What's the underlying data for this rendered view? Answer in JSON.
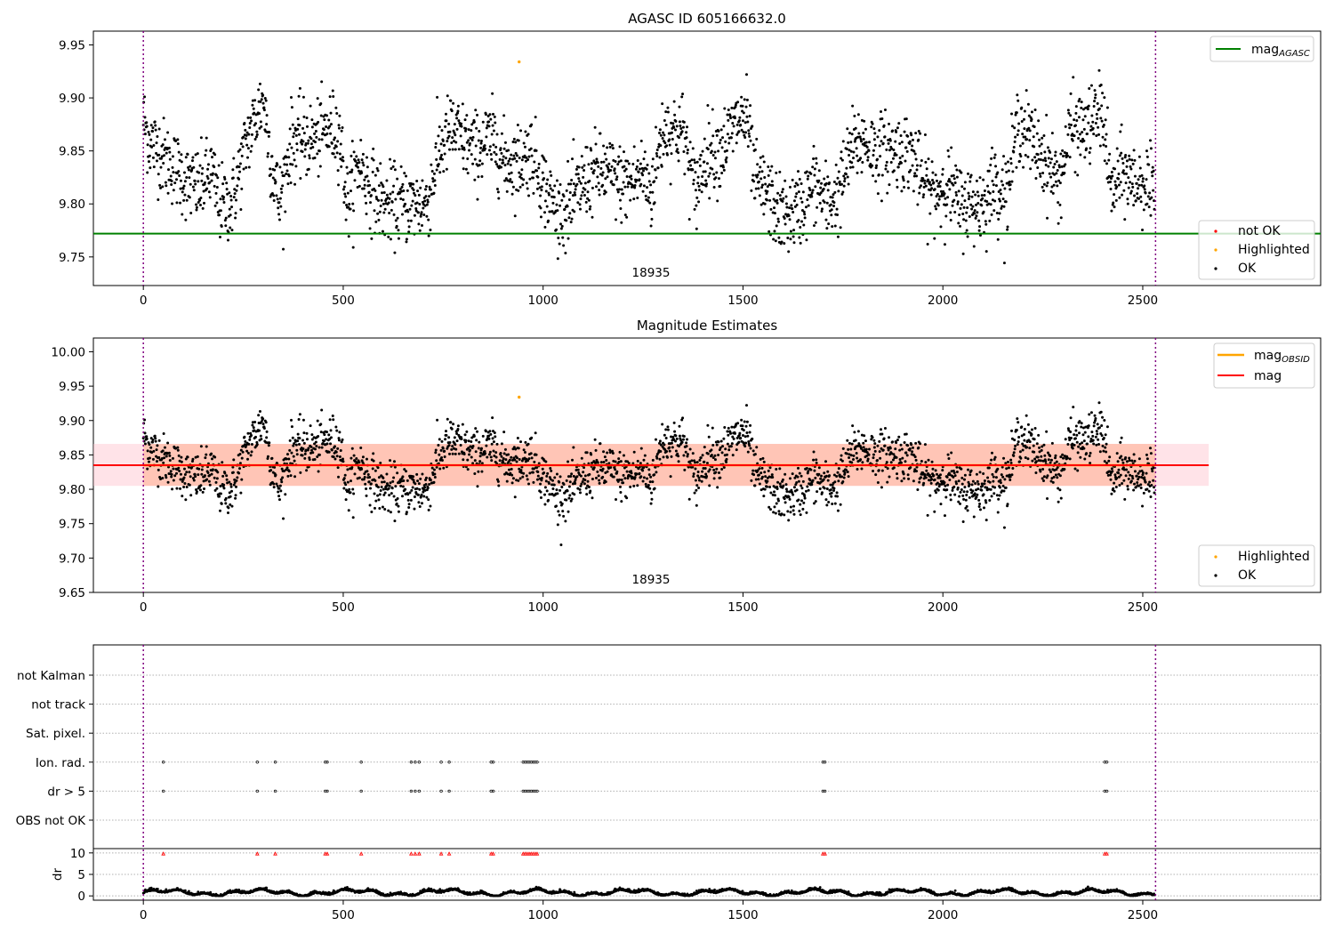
{
  "chart_data": [
    {
      "type": "scatter",
      "title": "AGASC ID 605166632.0",
      "xlabel": "",
      "ylabel": "",
      "xlim": [
        -125,
        2945
      ],
      "ylim": [
        9.723,
        9.963
      ],
      "xticks": [
        0,
        500,
        1000,
        1500,
        2000,
        2500
      ],
      "yticks": [
        9.75,
        9.8,
        9.85,
        9.9,
        9.95
      ],
      "ytick_labels": [
        "9.75",
        "9.80",
        "9.85",
        "9.90",
        "9.95"
      ],
      "obsid_label": "18935",
      "obsid_label_x": 1265,
      "obs_boundaries": [
        0,
        2532
      ],
      "mag_agasc": 9.772,
      "lines": [
        {
          "name": "mag_AGASC",
          "label": "mag",
          "subscript": "AGASC",
          "color": "#008000",
          "value": 9.772,
          "x_range": [
            -125,
            2945
          ]
        }
      ],
      "legend_upper": {
        "placement": "top-right",
        "entries": [
          {
            "label": "mag",
            "subscript": "AGASC",
            "color": "#008000"
          }
        ]
      },
      "legend_lower": {
        "placement": "bottom-right",
        "entries": [
          {
            "label": "not OK",
            "color": "#ff0000"
          },
          {
            "label": "Highlighted",
            "color": "#ffa500"
          },
          {
            "label": "OK",
            "color": "#000000"
          }
        ]
      },
      "highlighted_points": [
        {
          "x": 940,
          "y": 9.934
        }
      ],
      "series_summary": {
        "name": "OK",
        "n_points": 2530,
        "x_range": [
          0,
          2530
        ],
        "shape": [
          [
            0,
            9.88
          ],
          [
            15,
            9.86
          ],
          [
            40,
            9.85
          ],
          [
            60,
            9.84
          ],
          [
            90,
            9.83
          ],
          [
            110,
            9.82
          ],
          [
            140,
            9.815
          ],
          [
            170,
            9.83
          ],
          [
            190,
            9.8
          ],
          [
            220,
            9.8
          ],
          [
            240,
            9.83
          ],
          [
            260,
            9.86
          ],
          [
            280,
            9.88
          ],
          [
            300,
            9.9
          ],
          [
            320,
            9.84
          ],
          [
            340,
            9.8
          ],
          [
            370,
            9.86
          ],
          [
            400,
            9.86
          ],
          [
            430,
            9.86
          ],
          [
            460,
            9.87
          ],
          [
            490,
            9.87
          ],
          [
            510,
            9.8
          ],
          [
            540,
            9.84
          ],
          [
            560,
            9.82
          ],
          [
            600,
            9.8
          ],
          [
            640,
            9.8
          ],
          [
            680,
            9.8
          ],
          [
            710,
            9.8
          ],
          [
            740,
            9.85
          ],
          [
            770,
            9.87
          ],
          [
            800,
            9.86
          ],
          [
            830,
            9.85
          ],
          [
            860,
            9.86
          ],
          [
            880,
            9.86
          ],
          [
            900,
            9.84
          ],
          [
            940,
            9.84
          ],
          [
            970,
            9.85
          ],
          [
            990,
            9.83
          ],
          [
            1010,
            9.81
          ],
          [
            1040,
            9.79
          ],
          [
            1070,
            9.8
          ],
          [
            1100,
            9.82
          ],
          [
            1130,
            9.83
          ],
          [
            1160,
            9.83
          ],
          [
            1190,
            9.82
          ],
          [
            1220,
            9.82
          ],
          [
            1250,
            9.83
          ],
          [
            1270,
            9.81
          ],
          [
            1300,
            9.87
          ],
          [
            1330,
            9.87
          ],
          [
            1350,
            9.87
          ],
          [
            1380,
            9.81
          ],
          [
            1410,
            9.85
          ],
          [
            1440,
            9.85
          ],
          [
            1460,
            9.86
          ],
          [
            1490,
            9.88
          ],
          [
            1510,
            9.88
          ],
          [
            1530,
            9.82
          ],
          [
            1560,
            9.81
          ],
          [
            1590,
            9.79
          ],
          [
            1620,
            9.79
          ],
          [
            1650,
            9.8
          ],
          [
            1680,
            9.82
          ],
          [
            1710,
            9.8
          ],
          [
            1740,
            9.81
          ],
          [
            1770,
            9.85
          ],
          [
            1800,
            9.86
          ],
          [
            1830,
            9.85
          ],
          [
            1860,
            9.85
          ],
          [
            1890,
            9.85
          ],
          [
            1920,
            9.85
          ],
          [
            1950,
            9.82
          ],
          [
            1980,
            9.81
          ],
          [
            2010,
            9.82
          ],
          [
            2040,
            9.8
          ],
          [
            2070,
            9.8
          ],
          [
            2100,
            9.8
          ],
          [
            2130,
            9.82
          ],
          [
            2160,
            9.81
          ],
          [
            2190,
            9.88
          ],
          [
            2220,
            9.86
          ],
          [
            2260,
            9.84
          ],
          [
            2290,
            9.82
          ],
          [
            2320,
            9.87
          ],
          [
            2360,
            9.87
          ],
          [
            2400,
            9.89
          ],
          [
            2420,
            9.81
          ],
          [
            2450,
            9.83
          ],
          [
            2480,
            9.82
          ],
          [
            2510,
            9.82
          ],
          [
            2530,
            9.8
          ]
        ]
      }
    },
    {
      "type": "scatter",
      "title": "Magnitude Estimates",
      "xlabel": "",
      "ylabel": "",
      "xlim": [
        -125,
        2945
      ],
      "ylim": [
        9.65,
        10.02
      ],
      "xticks": [
        0,
        500,
        1000,
        1500,
        2000,
        2500
      ],
      "yticks": [
        9.65,
        9.7,
        9.75,
        9.8,
        9.85,
        9.9,
        9.95,
        10.0
      ],
      "ytick_labels": [
        "9.65",
        "9.70",
        "9.75",
        "9.80",
        "9.85",
        "9.90",
        "9.95",
        "10.00"
      ],
      "obsid_label": "18935",
      "obsid_label_x": 1265,
      "obs_boundaries": [
        0,
        2532
      ],
      "mag_obsid": 9.835,
      "mag": 9.835,
      "band_pink": {
        "x_range": [
          -125,
          2665
        ],
        "y_range": [
          9.805,
          9.866
        ]
      },
      "band_orange": {
        "x_range": [
          0,
          2532
        ],
        "y_range": [
          9.805,
          9.866
        ]
      },
      "lines": [
        {
          "name": "mag_OBSID",
          "label": "mag",
          "subscript": "OBSID",
          "color": "#ffa500",
          "value": 9.835,
          "x_range": [
            0,
            2532
          ]
        },
        {
          "name": "mag",
          "label": "mag",
          "subscript": "",
          "color": "#ff0000",
          "value": 9.835,
          "x_range": [
            -125,
            2665
          ]
        }
      ],
      "legend_upper": {
        "placement": "top-right",
        "entries": [
          {
            "label": "mag",
            "subscript": "OBSID",
            "color": "#ffa500"
          },
          {
            "label": "mag",
            "subscript": "",
            "color": "#ff0000"
          }
        ]
      },
      "legend_lower": {
        "placement": "bottom-right",
        "entries": [
          {
            "label": "Highlighted",
            "color": "#ffa500"
          },
          {
            "label": "OK",
            "color": "#000000"
          }
        ]
      },
      "highlighted_points": [
        {
          "x": 940,
          "y": 9.934
        }
      ]
    },
    {
      "type": "scatter",
      "title": "",
      "xlabel": "",
      "ylabel": "",
      "xlim": [
        -125,
        2945
      ],
      "xticks": [
        0,
        500,
        1000,
        1500,
        2000,
        2500
      ],
      "obs_boundaries": [
        0,
        2532
      ],
      "flag_rows": [
        "not Kalman",
        "not track",
        "Sat. pixel.",
        "Ion. rad.",
        "dr > 5",
        "OBS not OK"
      ],
      "flag_points": {
        "Ion. rad.": [
          50,
          285,
          330,
          455,
          460,
          545,
          670,
          680,
          690,
          745,
          765,
          870,
          875,
          950,
          955,
          960,
          965,
          970,
          975,
          980,
          985,
          1700,
          1705,
          2405,
          2410
        ],
        "dr > 5": [
          50,
          285,
          330,
          455,
          460,
          545,
          670,
          680,
          690,
          745,
          765,
          870,
          875,
          950,
          955,
          960,
          965,
          970,
          975,
          980,
          985,
          1700,
          1705,
          2405,
          2410
        ]
      },
      "dr_panel": {
        "ylabel": "dr",
        "yticks": [
          0,
          5,
          10
        ],
        "ytick_labels": [
          "0",
          "5",
          "10"
        ],
        "ylim": [
          -1,
          11
        ],
        "clipped_points_value": 9.8,
        "clipped_points_x": [
          50,
          285,
          330,
          455,
          460,
          545,
          670,
          680,
          690,
          745,
          765,
          870,
          875,
          950,
          955,
          960,
          965,
          970,
          975,
          980,
          985,
          1700,
          1705,
          2405,
          2410
        ],
        "series_summary": {
          "name": "dr",
          "n_points": 2530,
          "typical_range": [
            0.2,
            1.5
          ]
        }
      }
    }
  ]
}
